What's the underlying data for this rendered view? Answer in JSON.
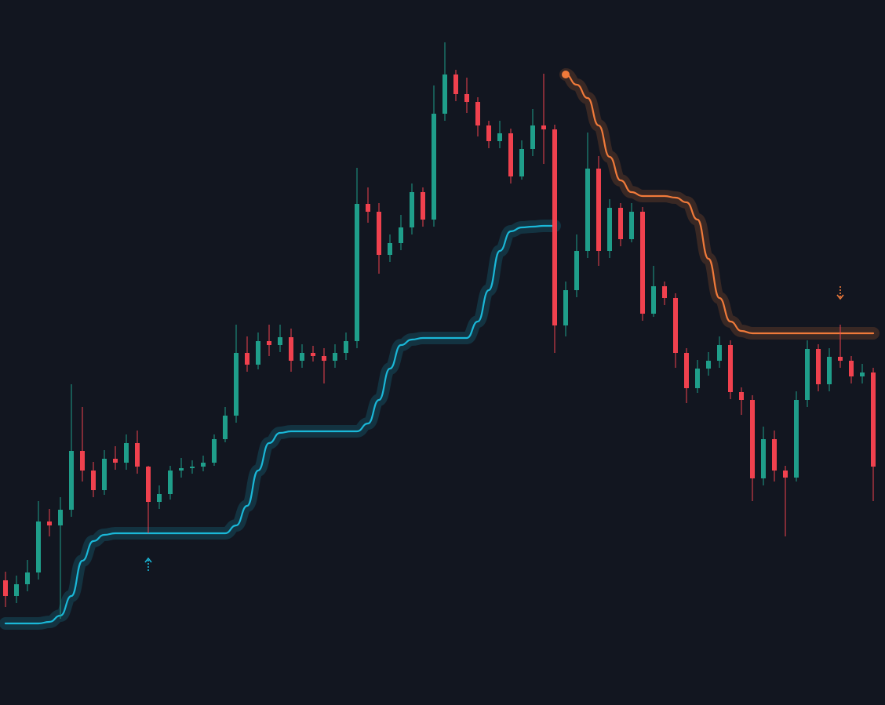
{
  "chart_data": {
    "type": "candlestick",
    "ylim": [
      0,
      899
    ],
    "up_color": "#1f9e8a",
    "down_color": "#f0414e",
    "background": "#121620",
    "open": [
      159,
      139,
      154,
      169,
      234,
      229,
      249,
      324,
      299,
      274,
      314,
      309,
      334,
      304,
      259,
      269,
      299,
      302,
      304,
      309,
      339,
      369,
      449,
      434,
      464,
      459,
      469,
      439,
      449,
      445,
      439,
      449,
      464,
      639,
      629,
      574,
      589,
      609,
      654,
      619,
      754,
      804,
      779,
      769,
      739,
      719,
      729,
      674,
      709,
      739,
      734,
      484,
      529,
      579,
      684,
      579,
      634,
      594,
      629,
      499,
      534,
      519,
      449,
      404,
      429,
      439,
      459,
      399,
      389,
      289,
      339,
      299,
      290,
      389,
      454,
      409,
      444,
      439,
      419,
      424
    ],
    "high": [
      170,
      165,
      185,
      260,
      250,
      265,
      409,
      380,
      310,
      325,
      330,
      345,
      350,
      305,
      280,
      305,
      315,
      312,
      318,
      345,
      380,
      485,
      470,
      475,
      485,
      485,
      480,
      460,
      458,
      455,
      460,
      475,
      685,
      660,
      640,
      600,
      625,
      665,
      660,
      790,
      845,
      810,
      800,
      775,
      745,
      745,
      735,
      720,
      760,
      805,
      740,
      540,
      600,
      730,
      700,
      645,
      640,
      640,
      635,
      560,
      540,
      525,
      455,
      440,
      450,
      470,
      465,
      405,
      395,
      355,
      350,
      305,
      400,
      465,
      460,
      455,
      485,
      445,
      435,
      430
    ],
    "low": [
      125,
      130,
      145,
      160,
      215,
      110,
      240,
      285,
      265,
      268,
      300,
      300,
      295,
      219,
      250,
      262,
      290,
      295,
      298,
      305,
      335,
      360,
      425,
      428,
      445,
      450,
      425,
      430,
      438,
      410,
      430,
      440,
      455,
      615,
      550,
      565,
      580,
      600,
      610,
      610,
      745,
      770,
      755,
      725,
      710,
      710,
      665,
      670,
      700,
      690,
      449,
      470,
      520,
      570,
      560,
      570,
      585,
      590,
      490,
      495,
      510,
      430,
      385,
      398,
      420,
      430,
      390,
      370,
      260,
      280,
      285,
      215,
      285,
      380,
      400,
      400,
      430,
      410,
      410,
      260
    ],
    "close": [
      139,
      154,
      169,
      234,
      229,
      249,
      324,
      299,
      274,
      314,
      309,
      334,
      304,
      259,
      269,
      299,
      302,
      304,
      309,
      339,
      369,
      449,
      434,
      464,
      459,
      469,
      439,
      449,
      445,
      439,
      449,
      464,
      639,
      629,
      574,
      589,
      609,
      654,
      619,
      754,
      804,
      779,
      769,
      739,
      719,
      729,
      674,
      709,
      739,
      734,
      484,
      529,
      579,
      684,
      579,
      634,
      594,
      629,
      499,
      534,
      519,
      449,
      404,
      429,
      439,
      459,
      399,
      389,
      289,
      339,
      299,
      290,
      389,
      454,
      409,
      444,
      439,
      419,
      424,
      304
    ],
    "lines": [
      {
        "color": "#1ab8d8",
        "values": [
          104,
          104,
          104,
          104,
          106,
          114,
          139,
          184,
          209,
          217,
          219,
          219,
          219,
          219,
          219,
          219,
          219,
          219,
          219,
          219,
          219,
          229,
          254,
          299,
          334,
          347,
          349,
          349,
          349,
          349,
          349,
          349,
          349,
          359,
          389,
          429,
          459,
          466,
          468,
          468,
          468,
          468,
          468,
          489,
          529,
          579,
          604,
          609,
          610,
          611,
          611,
          null,
          null,
          null,
          null,
          null,
          null,
          null,
          null,
          null,
          null,
          null,
          null,
          null,
          null,
          null,
          null,
          null,
          null,
          null,
          null,
          null,
          null,
          null,
          null,
          null,
          null,
          null,
          null,
          null
        ]
      },
      {
        "color": "#f07a3a",
        "values": [
          null,
          null,
          null,
          null,
          null,
          null,
          null,
          null,
          null,
          null,
          null,
          null,
          null,
          null,
          null,
          null,
          null,
          null,
          null,
          null,
          null,
          null,
          null,
          null,
          null,
          null,
          null,
          null,
          null,
          null,
          null,
          null,
          null,
          null,
          null,
          null,
          null,
          null,
          null,
          null,
          null,
          null,
          null,
          null,
          null,
          null,
          null,
          null,
          null,
          null,
          null,
          804,
          791,
          774,
          739,
          699,
          669,
          654,
          649,
          649,
          649,
          647,
          641,
          619,
          569,
          519,
          489,
          477,
          474,
          474,
          474,
          474,
          474,
          474,
          474,
          474,
          474,
          474,
          474,
          474
        ]
      }
    ],
    "markers": [
      {
        "index": 13,
        "value": 179,
        "direction": "up",
        "color": "#1ab8d8"
      },
      {
        "index": 76,
        "value": 526,
        "direction": "down",
        "color": "#f07a3a"
      }
    ]
  }
}
